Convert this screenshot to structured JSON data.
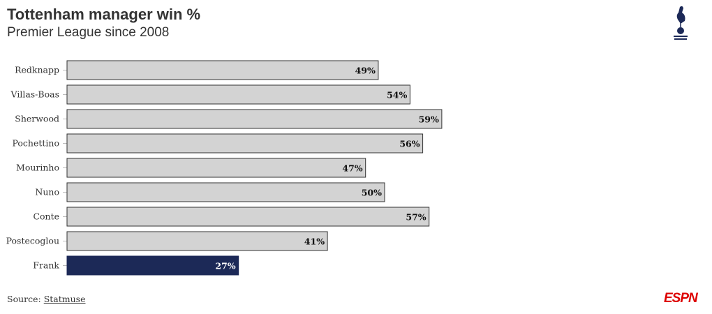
{
  "title": "Tottenham manager win %",
  "subtitle": "Premier League since 2008",
  "source_label": "Source:",
  "source_link": "Statmuse",
  "brand": "ESPN",
  "logo_text": "Tottenham Hotspur",
  "chart_data": {
    "type": "bar",
    "orientation": "horizontal",
    "categories": [
      "Redknapp",
      "Villas-Boas",
      "Sherwood",
      "Pochettino",
      "Mourinho",
      "Nuno",
      "Conte",
      "Postecoglou",
      "Frank"
    ],
    "values": [
      49,
      54,
      59,
      56,
      47,
      50,
      57,
      41,
      27
    ],
    "labels": [
      "49%",
      "54%",
      "59%",
      "56%",
      "47%",
      "50%",
      "57%",
      "41%",
      "27%"
    ],
    "xlim": [
      0,
      100
    ],
    "grid": false,
    "colors": {
      "default": "#d3d3d3",
      "highlight": "#1c2957",
      "highlight_category": "Frank"
    }
  }
}
